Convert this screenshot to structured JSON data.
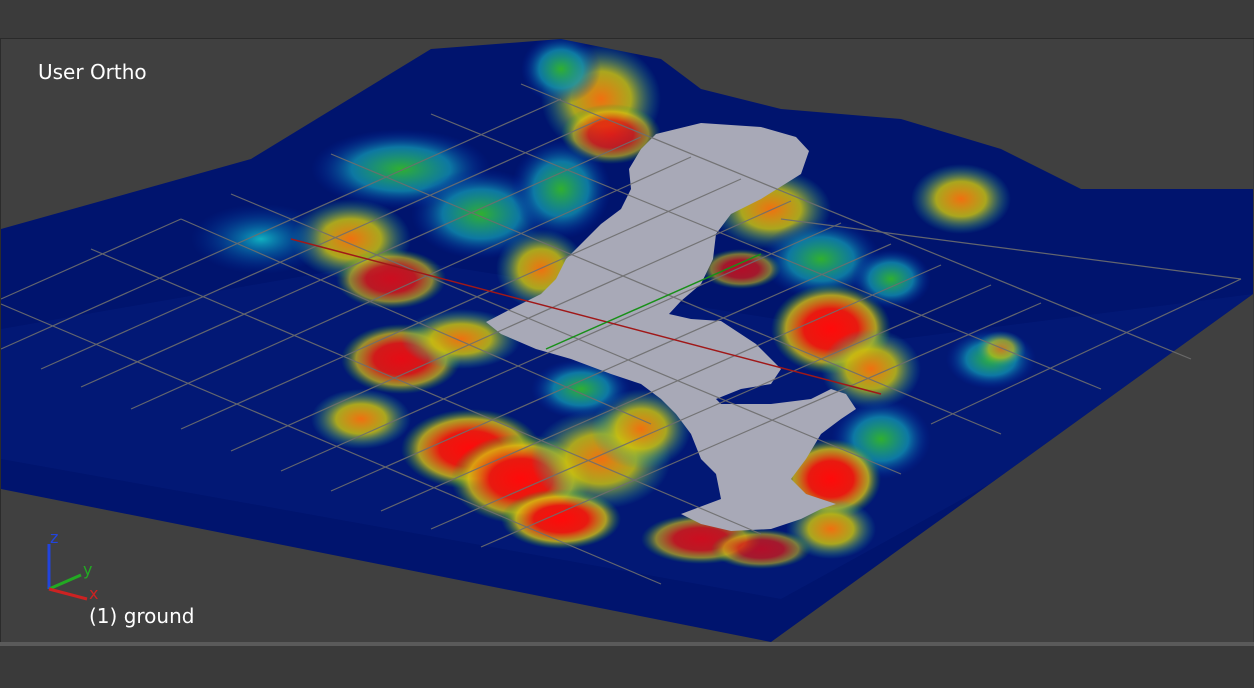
{
  "viewport": {
    "view_name": "User Ortho",
    "object_label": "(1) ground",
    "background_color": "#404040",
    "terrain_base_color": "#00146e",
    "selection_color": "#a8a9b7",
    "grid_color": "#6e6e6e",
    "x_axis_color": "#a01818",
    "y_axis_color": "#189018"
  },
  "axis_gizmo": {
    "x_label": "x",
    "y_label": "y",
    "z_label": "z",
    "x_color": "#cc2222",
    "y_color": "#22aa22",
    "z_color": "#2244dd"
  }
}
